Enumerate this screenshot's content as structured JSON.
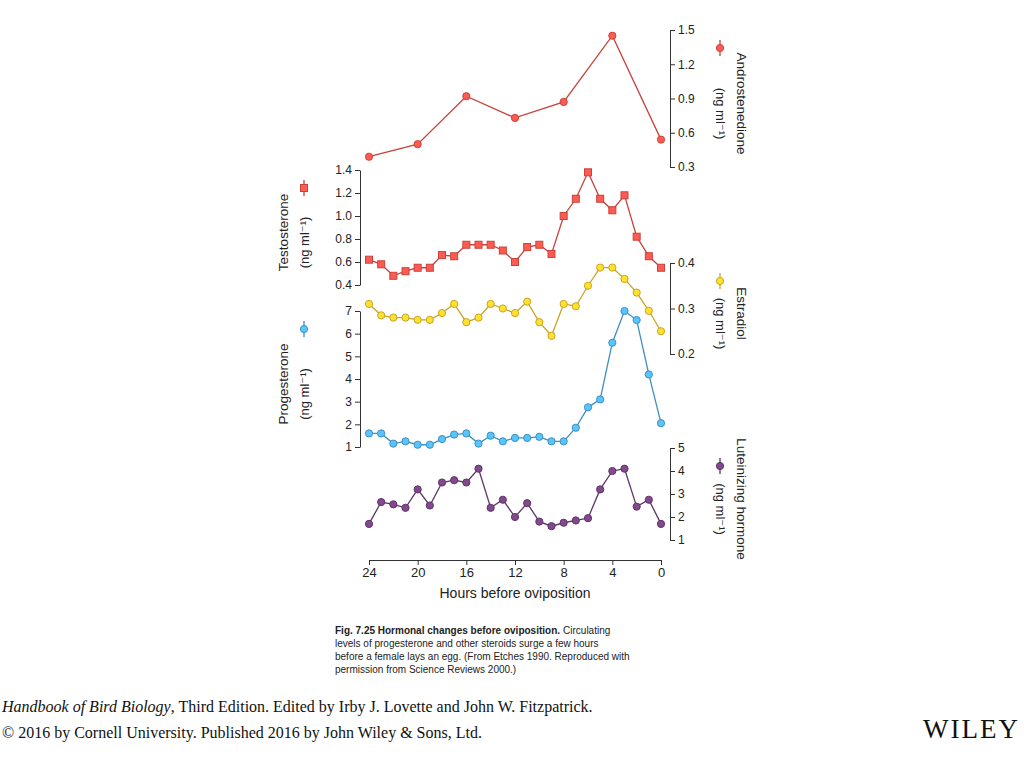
{
  "chart_data": [
    {
      "type": "line",
      "x": [
        24,
        20,
        16,
        12,
        8,
        4,
        0
      ],
      "xlim": [
        24,
        0
      ],
      "y2lim": [
        0.3,
        1.5
      ],
      "y2ticks": [
        0.3,
        0.6,
        0.9,
        1.2,
        1.5
      ],
      "ylabel": "(ng ml⁻¹)",
      "tick_labels": "y",
      "series": [
        {
          "name": "Androstenedione",
          "color": "#c8423c",
          "marker": "circle",
          "axis": "y2",
          "values": [
            0.39,
            0.5,
            0.92,
            0.73,
            0.87,
            1.45,
            0.54
          ]
        }
      ]
    },
    {
      "type": "line",
      "x": [
        24,
        23,
        22,
        21,
        20,
        19,
        18,
        17,
        16,
        15,
        14,
        13,
        12,
        11,
        10,
        9,
        8,
        7,
        6,
        5,
        4,
        3,
        2,
        1,
        0
      ],
      "xlim": [
        24,
        0
      ],
      "ylim": [
        0.4,
        1.4
      ],
      "yticks": [
        0.4,
        0.6,
        0.8,
        {
          "value": 1,
          "label": "1.0"
        },
        1.2,
        1.4
      ],
      "ylabel": "(ng ml⁻¹)",
      "tick_labels": "y",
      "series": [
        {
          "name": "Testosterone",
          "color": "#c8423c",
          "marker": "square",
          "values": [
            0.62,
            0.58,
            0.48,
            0.52,
            0.55,
            0.55,
            0.66,
            0.65,
            0.75,
            0.75,
            0.75,
            0.7,
            0.6,
            0.73,
            0.75,
            0.67,
            1.0,
            1.15,
            1.38,
            1.15,
            1.05,
            1.18,
            0.82,
            0.65,
            0.55
          ]
        }
      ]
    },
    {
      "type": "line",
      "x": [
        24,
        23,
        22,
        21,
        20,
        19,
        18,
        17,
        16,
        15,
        14,
        13,
        12,
        11,
        10,
        9,
        8,
        7,
        6,
        5,
        4,
        3,
        2,
        1,
        0
      ],
      "xlim": [
        24,
        0
      ],
      "y2lim": [
        0.2,
        0.4
      ],
      "y2ticks": [
        0.2,
        0.3,
        0.4
      ],
      "ylabel": "(ng ml⁻¹)",
      "tick_labels": "y",
      "series": [
        {
          "name": "Estradiol",
          "color": "#c9a422",
          "marker": "circle",
          "axis": "y2",
          "values": [
            0.31,
            0.285,
            0.28,
            0.28,
            0.275,
            0.275,
            0.29,
            0.31,
            0.27,
            0.28,
            0.31,
            0.3,
            0.29,
            0.315,
            0.27,
            0.24,
            0.31,
            0.305,
            0.35,
            0.39,
            0.39,
            0.365,
            0.335,
            0.295,
            0.25
          ]
        }
      ]
    },
    {
      "type": "line",
      "x": [
        24,
        23,
        22,
        21,
        20,
        19,
        18,
        17,
        16,
        15,
        14,
        13,
        12,
        11,
        10,
        9,
        8,
        7,
        6,
        5,
        4,
        3,
        2,
        1,
        0
      ],
      "xlim": [
        24,
        0
      ],
      "ylim": [
        1,
        7
      ],
      "yticks": [
        1,
        2,
        3,
        4,
        5,
        6,
        7
      ],
      "ylabel": "(ng ml⁻¹)",
      "tick_labels": "y",
      "series": [
        {
          "name": "Progesterone",
          "color": "#3f8fbf",
          "marker": "circle",
          "values": [
            1.6,
            1.6,
            1.15,
            1.25,
            1.1,
            1.1,
            1.35,
            1.55,
            1.6,
            1.15,
            1.5,
            1.25,
            1.4,
            1.4,
            1.45,
            1.25,
            1.25,
            1.85,
            2.75,
            3.1,
            5.6,
            7.0,
            6.6,
            4.2,
            2.05
          ]
        }
      ]
    },
    {
      "type": "line",
      "x": [
        24,
        23,
        22,
        21,
        20,
        19,
        18,
        17,
        16,
        15,
        14,
        13,
        12,
        11,
        10,
        9,
        8,
        7,
        6,
        5,
        4,
        3,
        2,
        1,
        0
      ],
      "xlim": [
        24,
        0
      ],
      "xticks": [
        24,
        20,
        16,
        12,
        8,
        4,
        0
      ],
      "xlabel": "Hours before oviposition",
      "y2lim": [
        1,
        5
      ],
      "y2ticks": [
        1,
        2,
        3,
        4,
        5
      ],
      "ylabel": "(ng ml⁻¹)",
      "tick_labels": true,
      "series": [
        {
          "name": "Luteinizing hormone",
          "color": "#5e3566",
          "marker": "circle",
          "axis": "y2",
          "values": [
            1.7,
            2.65,
            2.55,
            2.4,
            3.2,
            2.5,
            3.5,
            3.6,
            3.5,
            4.1,
            2.4,
            2.75,
            2.0,
            2.6,
            1.8,
            1.6,
            1.75,
            1.85,
            1.95,
            3.2,
            4.0,
            4.1,
            2.45,
            2.75,
            1.7
          ]
        }
      ]
    }
  ],
  "figure": {
    "caption_title": "Fig. 7.25 Hormonal changes before oviposition.",
    "caption_lines": [
      "Circulating",
      "levels of progesterone and other steroids surge a few hours",
      "before a female lays an egg. (From Etches 1990. Reproduced with",
      "permission from Science Reviews 2000.)"
    ],
    "credit_title": "Handbook of Bird Biology",
    "credit_rest": ", Third Edition. Edited by Irby J. Lovette and John W. Fitzpatrick.",
    "credit_line2": "© 2016 by Cornell University. Published 2016 by John Wiley & Sons, Ltd.",
    "publisher": "WILEY"
  }
}
